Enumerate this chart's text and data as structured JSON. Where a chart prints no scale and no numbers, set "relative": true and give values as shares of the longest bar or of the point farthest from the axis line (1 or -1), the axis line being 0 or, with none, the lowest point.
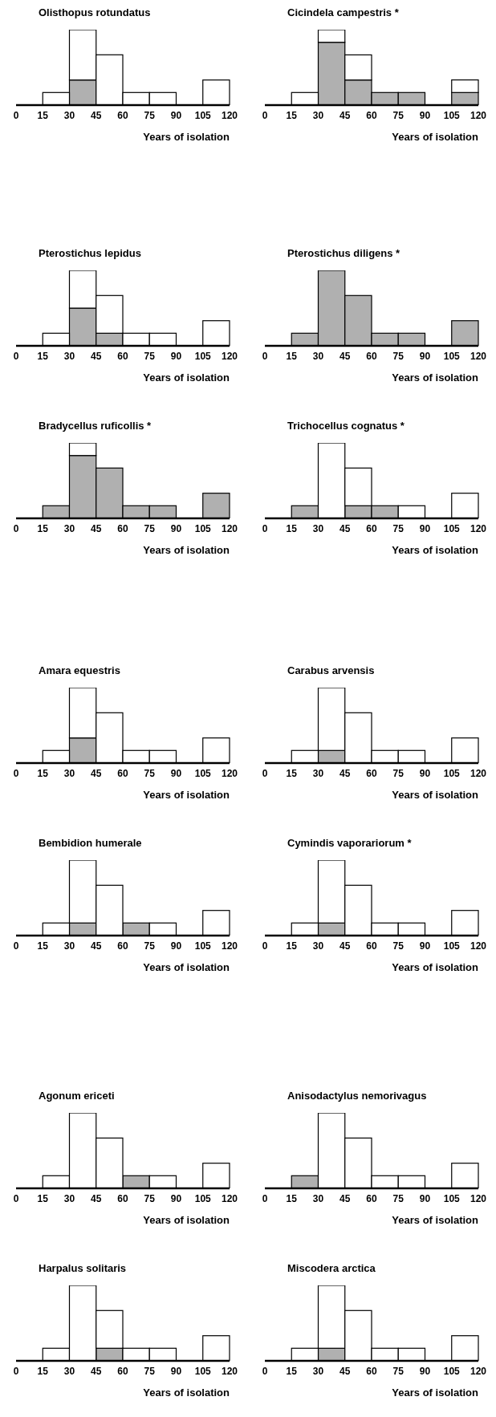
{
  "chart_data": [
    {
      "type": "bar",
      "title": "Olisthopus rotundatus",
      "xlabel": "Years of isolation",
      "x": [
        7.5,
        22.5,
        37.5,
        52.5,
        67.5,
        82.5,
        97.5,
        112.5
      ],
      "xlim": [
        0,
        120
      ],
      "xticks": [
        0,
        15,
        30,
        45,
        60,
        75,
        90,
        105,
        120
      ],
      "stacked": true,
      "relative": true,
      "series": [
        {
          "color": "#b0b0b0",
          "values": [
            0,
            0,
            0.333,
            0,
            0,
            0,
            0,
            0
          ]
        },
        {
          "color": "#ffffff",
          "values": [
            0,
            0.167,
            0.667,
            0.667,
            0.167,
            0.167,
            0,
            0.333
          ]
        }
      ]
    },
    {
      "type": "bar",
      "title": "Cicindela campestris *",
      "xlabel": "Years of isolation",
      "x": [
        7.5,
        22.5,
        37.5,
        52.5,
        67.5,
        82.5,
        97.5,
        112.5
      ],
      "xlim": [
        0,
        120
      ],
      "xticks": [
        0,
        15,
        30,
        45,
        60,
        75,
        90,
        105,
        120
      ],
      "stacked": true,
      "relative": true,
      "series": [
        {
          "color": "#b0b0b0",
          "values": [
            0,
            0,
            0.833,
            0.333,
            0.167,
            0.167,
            0,
            0.167
          ]
        },
        {
          "color": "#ffffff",
          "values": [
            0,
            0.167,
            0.167,
            0.333,
            0,
            0,
            0,
            0.167
          ]
        }
      ]
    },
    {
      "type": "bar",
      "title": "Pterostichus lepidus",
      "xlabel": "Years of isolation",
      "x": [
        7.5,
        22.5,
        37.5,
        52.5,
        67.5,
        82.5,
        97.5,
        112.5
      ],
      "xlim": [
        0,
        120
      ],
      "xticks": [
        0,
        15,
        30,
        45,
        60,
        75,
        90,
        105,
        120
      ],
      "stacked": true,
      "relative": true,
      "series": [
        {
          "color": "#b0b0b0",
          "values": [
            0,
            0,
            0.5,
            0.167,
            0,
            0,
            0,
            0
          ]
        },
        {
          "color": "#ffffff",
          "values": [
            0,
            0.167,
            0.5,
            0.5,
            0.167,
            0.167,
            0,
            0.333
          ]
        }
      ]
    },
    {
      "type": "bar",
      "title": "Pterostichus diligens *",
      "xlabel": "Years of isolation",
      "x": [
        7.5,
        22.5,
        37.5,
        52.5,
        67.5,
        82.5,
        97.5,
        112.5
      ],
      "xlim": [
        0,
        120
      ],
      "xticks": [
        0,
        15,
        30,
        45,
        60,
        75,
        90,
        105,
        120
      ],
      "stacked": true,
      "relative": true,
      "series": [
        {
          "color": "#b0b0b0",
          "values": [
            0,
            0.167,
            1,
            0.667,
            0.167,
            0.167,
            0,
            0.333
          ]
        },
        {
          "color": "#ffffff",
          "values": [
            0,
            0,
            0,
            0,
            0,
            0,
            0,
            0
          ]
        }
      ]
    },
    {
      "type": "bar",
      "title": "Bradycellus ruficollis *",
      "xlabel": "Years of isolation",
      "x": [
        7.5,
        22.5,
        37.5,
        52.5,
        67.5,
        82.5,
        97.5,
        112.5
      ],
      "xlim": [
        0,
        120
      ],
      "xticks": [
        0,
        15,
        30,
        45,
        60,
        75,
        90,
        105,
        120
      ],
      "stacked": true,
      "relative": true,
      "series": [
        {
          "color": "#b0b0b0",
          "values": [
            0,
            0.167,
            0.833,
            0.667,
            0.167,
            0.167,
            0,
            0.333
          ]
        },
        {
          "color": "#ffffff",
          "values": [
            0,
            0,
            0.167,
            0,
            0,
            0,
            0,
            0
          ]
        }
      ]
    },
    {
      "type": "bar",
      "title": "Trichocellus cognatus *",
      "xlabel": "Years of isolation",
      "x": [
        7.5,
        22.5,
        37.5,
        52.5,
        67.5,
        82.5,
        97.5,
        112.5
      ],
      "xlim": [
        0,
        120
      ],
      "xticks": [
        0,
        15,
        30,
        45,
        60,
        75,
        90,
        105,
        120
      ],
      "stacked": true,
      "relative": true,
      "series": [
        {
          "color": "#b0b0b0",
          "values": [
            0,
            0.167,
            0,
            0.167,
            0.167,
            0,
            0,
            0
          ]
        },
        {
          "color": "#ffffff",
          "values": [
            0,
            0,
            1,
            0.5,
            0,
            0.167,
            0,
            0.333
          ]
        }
      ]
    },
    {
      "type": "bar",
      "title": "Amara equestris",
      "xlabel": "Years of isolation",
      "x": [
        7.5,
        22.5,
        37.5,
        52.5,
        67.5,
        82.5,
        97.5,
        112.5
      ],
      "xlim": [
        0,
        120
      ],
      "xticks": [
        0,
        15,
        30,
        45,
        60,
        75,
        90,
        105,
        120
      ],
      "stacked": true,
      "relative": true,
      "series": [
        {
          "color": "#b0b0b0",
          "values": [
            0,
            0,
            0.333,
            0,
            0,
            0,
            0,
            0
          ]
        },
        {
          "color": "#ffffff",
          "values": [
            0,
            0.167,
            0.667,
            0.667,
            0.167,
            0.167,
            0,
            0.333
          ]
        }
      ]
    },
    {
      "type": "bar",
      "title": "Carabus arvensis",
      "xlabel": "Years of isolation",
      "x": [
        7.5,
        22.5,
        37.5,
        52.5,
        67.5,
        82.5,
        97.5,
        112.5
      ],
      "xlim": [
        0,
        120
      ],
      "xticks": [
        0,
        15,
        30,
        45,
        60,
        75,
        90,
        105,
        120
      ],
      "stacked": true,
      "relative": true,
      "series": [
        {
          "color": "#b0b0b0",
          "values": [
            0,
            0,
            0.167,
            0,
            0,
            0,
            0,
            0
          ]
        },
        {
          "color": "#ffffff",
          "values": [
            0,
            0.167,
            0.833,
            0.667,
            0.167,
            0.167,
            0,
            0.333
          ]
        }
      ]
    },
    {
      "type": "bar",
      "title": "Bembidion humerale",
      "xlabel": "Years of isolation",
      "x": [
        7.5,
        22.5,
        37.5,
        52.5,
        67.5,
        82.5,
        97.5,
        112.5
      ],
      "xlim": [
        0,
        120
      ],
      "xticks": [
        0,
        15,
        30,
        45,
        60,
        75,
        90,
        105,
        120
      ],
      "stacked": true,
      "relative": true,
      "series": [
        {
          "color": "#b0b0b0",
          "values": [
            0,
            0,
            0.167,
            0,
            0.167,
            0,
            0,
            0
          ]
        },
        {
          "color": "#ffffff",
          "values": [
            0,
            0.167,
            0.833,
            0.667,
            0,
            0.167,
            0,
            0.333
          ]
        }
      ]
    },
    {
      "type": "bar",
      "title": "Cymindis vaporariorum *",
      "xlabel": "Years of isolation",
      "x": [
        7.5,
        22.5,
        37.5,
        52.5,
        67.5,
        82.5,
        97.5,
        112.5
      ],
      "xlim": [
        0,
        120
      ],
      "xticks": [
        0,
        15,
        30,
        45,
        60,
        75,
        90,
        105,
        120
      ],
      "stacked": true,
      "relative": true,
      "series": [
        {
          "color": "#b0b0b0",
          "values": [
            0,
            0,
            0.167,
            0,
            0,
            0,
            0,
            0
          ]
        },
        {
          "color": "#ffffff",
          "values": [
            0,
            0.167,
            0.833,
            0.667,
            0.167,
            0.167,
            0,
            0.333
          ]
        }
      ]
    },
    {
      "type": "bar",
      "title": "Agonum ericeti",
      "xlabel": "Years of isolation",
      "x": [
        7.5,
        22.5,
        37.5,
        52.5,
        67.5,
        82.5,
        97.5,
        112.5
      ],
      "xlim": [
        0,
        120
      ],
      "xticks": [
        0,
        15,
        30,
        45,
        60,
        75,
        90,
        105,
        120
      ],
      "stacked": true,
      "relative": true,
      "series": [
        {
          "color": "#b0b0b0",
          "values": [
            0,
            0,
            0,
            0,
            0.167,
            0,
            0,
            0
          ]
        },
        {
          "color": "#ffffff",
          "values": [
            0,
            0.167,
            1,
            0.667,
            0,
            0.167,
            0,
            0.333
          ]
        }
      ]
    },
    {
      "type": "bar",
      "title": "Anisodactylus nemorivagus",
      "xlabel": "Years of isolation",
      "x": [
        7.5,
        22.5,
        37.5,
        52.5,
        67.5,
        82.5,
        97.5,
        112.5
      ],
      "xlim": [
        0,
        120
      ],
      "xticks": [
        0,
        15,
        30,
        45,
        60,
        75,
        90,
        105,
        120
      ],
      "stacked": true,
      "relative": true,
      "series": [
        {
          "color": "#b0b0b0",
          "values": [
            0,
            0.167,
            0,
            0,
            0,
            0,
            0,
            0
          ]
        },
        {
          "color": "#ffffff",
          "values": [
            0,
            0,
            1,
            0.667,
            0.167,
            0.167,
            0,
            0.333
          ]
        }
      ]
    },
    {
      "type": "bar",
      "title": "Harpalus solitaris",
      "xlabel": "Years of isolation",
      "x": [
        7.5,
        22.5,
        37.5,
        52.5,
        67.5,
        82.5,
        97.5,
        112.5
      ],
      "xlim": [
        0,
        120
      ],
      "xticks": [
        0,
        15,
        30,
        45,
        60,
        75,
        90,
        105,
        120
      ],
      "stacked": true,
      "relative": true,
      "series": [
        {
          "color": "#b0b0b0",
          "values": [
            0,
            0,
            0,
            0.167,
            0,
            0,
            0,
            0
          ]
        },
        {
          "color": "#ffffff",
          "values": [
            0,
            0.167,
            1,
            0.5,
            0.167,
            0.167,
            0,
            0.333
          ]
        }
      ]
    },
    {
      "type": "bar",
      "title": "Miscodera arctica",
      "xlabel": "Years of isolation",
      "x": [
        7.5,
        22.5,
        37.5,
        52.5,
        67.5,
        82.5,
        97.5,
        112.5
      ],
      "xlim": [
        0,
        120
      ],
      "xticks": [
        0,
        15,
        30,
        45,
        60,
        75,
        90,
        105,
        120
      ],
      "stacked": true,
      "relative": true,
      "series": [
        {
          "color": "#b0b0b0",
          "values": [
            0,
            0,
            0.167,
            0,
            0,
            0,
            0,
            0
          ]
        },
        {
          "color": "#ffffff",
          "values": [
            0,
            0.167,
            0.833,
            0.667,
            0.167,
            0.167,
            0,
            0.333
          ]
        }
      ]
    }
  ]
}
